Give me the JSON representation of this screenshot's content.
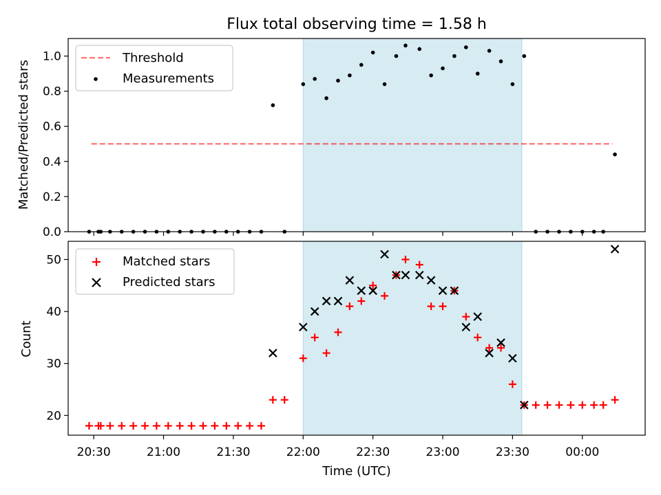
{
  "colors": {
    "shade": "#add8e6",
    "threshold": "#ff0000",
    "measure": "#000000",
    "matched": "#ff0000",
    "predicted": "#000000"
  },
  "chart_data": [
    {
      "type": "scatter",
      "title": "Flux total observing time = 1.58 h",
      "xlabel": "",
      "ylabel": "Matched/Predicted stars",
      "xlim": [
        "20:19",
        "00:27"
      ],
      "ylim": [
        0,
        1.1
      ],
      "yticks": [
        "0.0",
        "0.2",
        "0.4",
        "0.6",
        "0.8",
        "1.0"
      ],
      "grid": false,
      "legend_position": "upper-left",
      "shaded_region": {
        "start": "22:00",
        "end": "23:34"
      },
      "threshold": {
        "name": "Threshold",
        "value": 0.5,
        "x_start": "20:29",
        "x_end": "00:13"
      },
      "series": [
        {
          "name": "Measurements",
          "points": [
            [
              "20:28",
              0.0
            ],
            [
              "20:32",
              0.0
            ],
            [
              "20:33",
              0.0
            ],
            [
              "20:37",
              0.0
            ],
            [
              "20:42",
              0.0
            ],
            [
              "20:47",
              0.0
            ],
            [
              "20:52",
              0.0
            ],
            [
              "20:57",
              0.0
            ],
            [
              "21:02",
              0.0
            ],
            [
              "21:07",
              0.0
            ],
            [
              "21:12",
              0.0
            ],
            [
              "21:17",
              0.0
            ],
            [
              "21:22",
              0.0
            ],
            [
              "21:27",
              0.0
            ],
            [
              "21:32",
              0.0
            ],
            [
              "21:37",
              0.0
            ],
            [
              "21:42",
              0.0
            ],
            [
              "21:47",
              0.72
            ],
            [
              "21:52",
              0.0
            ],
            [
              "22:00",
              0.84
            ],
            [
              "22:05",
              0.87
            ],
            [
              "22:10",
              0.76
            ],
            [
              "22:15",
              0.86
            ],
            [
              "22:20",
              0.89
            ],
            [
              "22:25",
              0.95
            ],
            [
              "22:30",
              1.02
            ],
            [
              "22:35",
              0.84
            ],
            [
              "22:40",
              1.0
            ],
            [
              "22:44",
              1.06
            ],
            [
              "22:50",
              1.04
            ],
            [
              "22:55",
              0.89
            ],
            [
              "23:00",
              0.93
            ],
            [
              "23:05",
              1.0
            ],
            [
              "23:10",
              1.05
            ],
            [
              "23:15",
              0.9
            ],
            [
              "23:20",
              1.03
            ],
            [
              "23:25",
              0.97
            ],
            [
              "23:30",
              0.84
            ],
            [
              "23:35",
              1.0
            ],
            [
              "23:40",
              0.0
            ],
            [
              "23:45",
              0.0
            ],
            [
              "23:50",
              0.0
            ],
            [
              "23:55",
              0.0
            ],
            [
              "00:00",
              0.0
            ],
            [
              "00:05",
              0.0
            ],
            [
              "00:09",
              0.0
            ],
            [
              "00:14",
              0.44
            ]
          ]
        }
      ]
    },
    {
      "type": "scatter",
      "title": "",
      "xlabel": "Time (UTC)",
      "ylabel": "Count",
      "xlim": [
        "20:19",
        "00:27"
      ],
      "ylim": [
        16.2,
        53.5
      ],
      "yticks": [
        "20",
        "30",
        "40",
        "50"
      ],
      "xticks": [
        "20:30",
        "21:00",
        "21:30",
        "22:00",
        "22:30",
        "23:00",
        "23:30",
        "00:00"
      ],
      "grid": false,
      "legend_position": "upper-left",
      "shaded_region": {
        "start": "22:00",
        "end": "23:34"
      },
      "series": [
        {
          "name": "Matched stars",
          "marker": "+",
          "points": [
            [
              "20:28",
              18
            ],
            [
              "20:32",
              18
            ],
            [
              "20:33",
              18
            ],
            [
              "20:37",
              18
            ],
            [
              "20:42",
              18
            ],
            [
              "20:47",
              18
            ],
            [
              "20:52",
              18
            ],
            [
              "20:57",
              18
            ],
            [
              "21:02",
              18
            ],
            [
              "21:07",
              18
            ],
            [
              "21:12",
              18
            ],
            [
              "21:17",
              18
            ],
            [
              "21:22",
              18
            ],
            [
              "21:27",
              18
            ],
            [
              "21:32",
              18
            ],
            [
              "21:37",
              18
            ],
            [
              "21:42",
              18
            ],
            [
              "21:47",
              23
            ],
            [
              "21:52",
              23
            ],
            [
              "22:00",
              31
            ],
            [
              "22:05",
              35
            ],
            [
              "22:10",
              32
            ],
            [
              "22:15",
              36
            ],
            [
              "22:20",
              41
            ],
            [
              "22:25",
              42
            ],
            [
              "22:30",
              45
            ],
            [
              "22:35",
              43
            ],
            [
              "22:40",
              47
            ],
            [
              "22:44",
              50
            ],
            [
              "22:50",
              49
            ],
            [
              "22:55",
              41
            ],
            [
              "23:00",
              41
            ],
            [
              "23:05",
              44
            ],
            [
              "23:10",
              39
            ],
            [
              "23:15",
              35
            ],
            [
              "23:20",
              33
            ],
            [
              "23:25",
              33
            ],
            [
              "23:30",
              26
            ],
            [
              "23:35",
              22
            ],
            [
              "23:40",
              22
            ],
            [
              "23:45",
              22
            ],
            [
              "23:50",
              22
            ],
            [
              "23:55",
              22
            ],
            [
              "00:00",
              22
            ],
            [
              "00:05",
              22
            ],
            [
              "00:09",
              22
            ],
            [
              "00:14",
              23
            ]
          ]
        },
        {
          "name": "Predicted stars",
          "marker": "x",
          "points": [
            [
              "21:47",
              32
            ],
            [
              "22:00",
              37
            ],
            [
              "22:05",
              40
            ],
            [
              "22:10",
              42
            ],
            [
              "22:15",
              42
            ],
            [
              "22:20",
              46
            ],
            [
              "22:25",
              44
            ],
            [
              "22:30",
              44
            ],
            [
              "22:35",
              51
            ],
            [
              "22:40",
              47
            ],
            [
              "22:44",
              47
            ],
            [
              "22:50",
              47
            ],
            [
              "22:55",
              46
            ],
            [
              "23:00",
              44
            ],
            [
              "23:05",
              44
            ],
            [
              "23:10",
              37
            ],
            [
              "23:15",
              39
            ],
            [
              "23:20",
              32
            ],
            [
              "23:25",
              34
            ],
            [
              "23:30",
              31
            ],
            [
              "23:35",
              22
            ],
            [
              "00:14",
              52
            ]
          ]
        }
      ]
    }
  ]
}
